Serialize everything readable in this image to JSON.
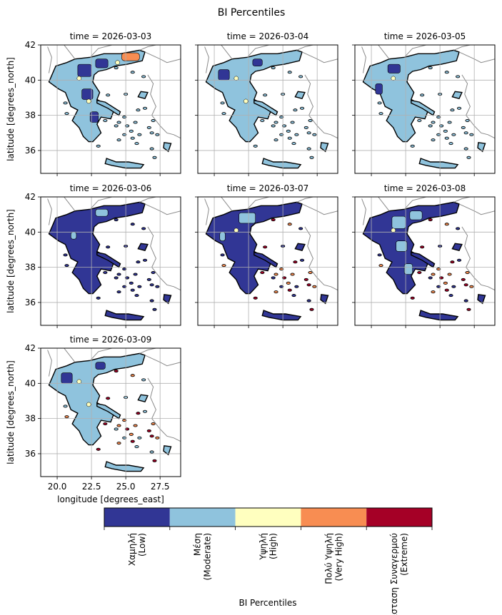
{
  "figure": {
    "title": "BI Percentiles",
    "xlabel": "longitude [degrees_east]",
    "ylabel": "latitude [degrees_north]"
  },
  "chart_data": {
    "type": "heatmap",
    "title": "BI Percentiles",
    "xlabel": "longitude [degrees_east]",
    "ylabel": "latitude [degrees_north]",
    "xlim": [
      18.8,
      29.0
    ],
    "ylim": [
      34.7,
      42.0
    ],
    "xticks": [
      20.0,
      22.5,
      25.0,
      27.5
    ],
    "xtick_labels": [
      "20.0",
      "22.5",
      "25.0",
      "27.5"
    ],
    "yticks": [
      36,
      38,
      40,
      42
    ],
    "ytick_labels": [
      "36",
      "38",
      "40",
      "42"
    ],
    "grid": true,
    "panels": [
      {
        "label": "time = 2026-03-03",
        "dominant": 1,
        "high_spots": 3,
        "extreme": false
      },
      {
        "label": "time = 2026-03-04",
        "dominant": 1,
        "high_spots": 2,
        "extreme": false
      },
      {
        "label": "time = 2026-03-05",
        "dominant": 1,
        "high_spots": 1,
        "extreme": false
      },
      {
        "label": "time = 2026-03-06",
        "dominant": 0,
        "high_spots": 0,
        "extreme": false
      },
      {
        "label": "time = 2026-03-07",
        "dominant": 0,
        "high_spots": 1,
        "extreme": true
      },
      {
        "label": "time = 2026-03-08",
        "dominant": 0,
        "high_spots": 1,
        "extreme": true
      },
      {
        "label": "time = 2026-03-09",
        "dominant": 1,
        "high_spots": 2,
        "extreme": true
      }
    ],
    "colorbar": {
      "label": "BI Percentiles",
      "categories": [
        {
          "line1": "Χαμηλή",
          "line2": "(Low)",
          "color": "#313695"
        },
        {
          "line1": "Μέση",
          "line2": "(Moderate)",
          "color": "#8fc3dd"
        },
        {
          "line1": "Υψηλή",
          "line2": "(High)",
          "color": "#ffffbf"
        },
        {
          "line1": "Πολύ Υψηλή",
          "line2": "(Very High)",
          "color": "#f88d52"
        },
        {
          "line1": "Κατάσταση Συναγερμού",
          "line2": "(Extreme)",
          "color": "#a50026"
        }
      ]
    }
  }
}
